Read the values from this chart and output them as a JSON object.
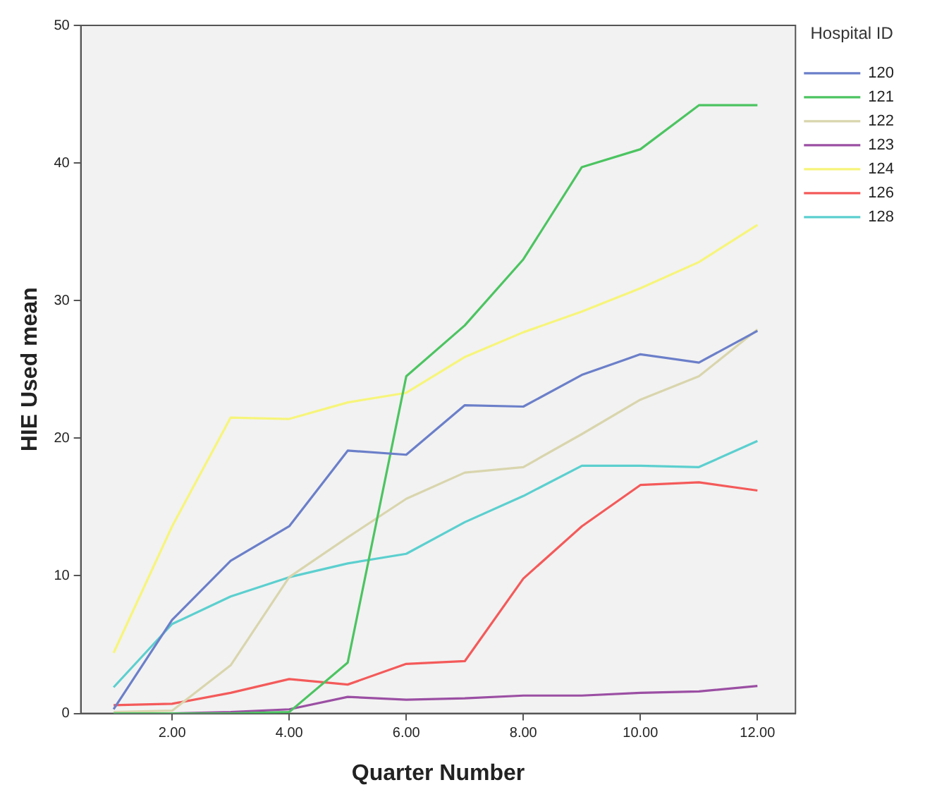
{
  "chart_data": {
    "type": "line",
    "xlabel": "Quarter Number",
    "ylabel": "HIE Used mean",
    "legend_title": "Hospital ID",
    "legend": "right",
    "grid": false,
    "marker": "none",
    "line_style": "solid",
    "x": [
      1,
      2,
      3,
      4,
      5,
      6,
      7,
      8,
      9,
      10,
      11,
      12
    ],
    "xlim": [
      0.44,
      12.65
    ],
    "xticks": [
      {
        "value": 2,
        "label": "2.00"
      },
      {
        "value": 4,
        "label": "4.00"
      },
      {
        "value": 6,
        "label": "6.00"
      },
      {
        "value": 8,
        "label": "8.00"
      },
      {
        "value": 10,
        "label": "10.00"
      },
      {
        "value": 12,
        "label": "12.00"
      }
    ],
    "ylim": [
      0,
      50
    ],
    "yticks": [
      0,
      10,
      20,
      30,
      40,
      50
    ],
    "series": [
      {
        "name": "120",
        "color": "#6b7fc9",
        "values": [
          0.3,
          6.8,
          11.1,
          13.6,
          19.1,
          18.8,
          22.4,
          22.3,
          24.6,
          26.1,
          25.5,
          27.8
        ]
      },
      {
        "name": "121",
        "color": "#4cc461",
        "values": [
          0,
          0,
          0,
          0.1,
          3.7,
          24.5,
          28.2,
          33.0,
          39.7,
          41.0,
          44.2,
          44.2
        ]
      },
      {
        "name": "122",
        "color": "#d9d5ad",
        "values": [
          0.1,
          0.2,
          3.5,
          9.9,
          12.8,
          15.6,
          17.5,
          17.9,
          20.3,
          22.8,
          24.5,
          27.9
        ]
      },
      {
        "name": "123",
        "color": "#9b4fa3",
        "values": [
          0,
          0,
          0.1,
          0.3,
          1.2,
          1.0,
          1.1,
          1.3,
          1.3,
          1.5,
          1.6,
          2.0
        ]
      },
      {
        "name": "124",
        "color": "#f7f57a",
        "values": [
          4.4,
          13.6,
          21.5,
          21.4,
          22.6,
          23.3,
          25.9,
          27.7,
          29.2,
          30.9,
          32.8,
          35.5
        ]
      },
      {
        "name": "126",
        "color": "#f45a5a",
        "values": [
          0.6,
          0.7,
          1.5,
          2.5,
          2.1,
          3.6,
          3.8,
          9.8,
          13.6,
          16.6,
          16.8,
          16.2
        ]
      },
      {
        "name": "128",
        "color": "#5ccfcf",
        "values": [
          1.9,
          6.5,
          8.5,
          9.9,
          10.9,
          11.6,
          13.9,
          15.8,
          18.0,
          18.0,
          17.9,
          19.8
        ]
      }
    ]
  }
}
